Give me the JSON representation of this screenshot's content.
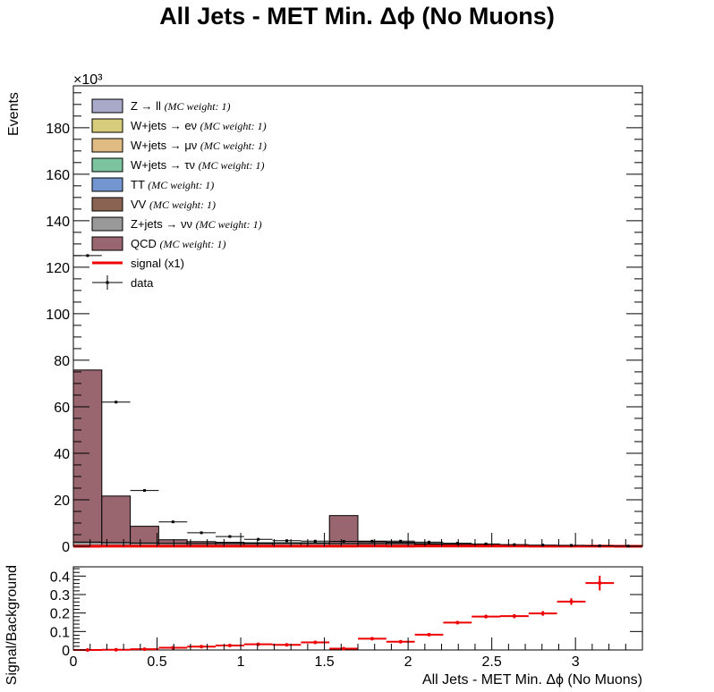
{
  "title": "All Jets - MET Min. Δϕ (No Muons)",
  "chart_data": [
    {
      "type": "bar",
      "stacked": true,
      "title": "All Jets - MET Min. Δϕ (No Muons)",
      "ylabel": "Events",
      "y_multiplier": "×10³",
      "xlim": [
        0,
        3.4
      ],
      "ylim": [
        0,
        198
      ],
      "y_ticks": [
        0,
        20,
        40,
        60,
        80,
        100,
        120,
        140,
        160,
        180
      ],
      "y_tick_labels": [
        "0",
        "20",
        "40",
        "60",
        "80",
        "100",
        "120",
        "140",
        "160",
        "180"
      ],
      "bin_edges": [
        0,
        0.17,
        0.34,
        0.51,
        0.68,
        0.85,
        1.02,
        1.19,
        1.36,
        1.53,
        1.7,
        1.87,
        2.04,
        2.21,
        2.38,
        2.55,
        2.72,
        2.89,
        3.06,
        3.23,
        3.4
      ],
      "legend_position": "top-left",
      "series": [
        {
          "name": "Z+jets → νν",
          "note": "(MC weight: 1)",
          "color": "#999999",
          "values": [
            1.8,
            1.6,
            1.4,
            1.3,
            1.2,
            1.2,
            1.2,
            1.3,
            1.3,
            1.2,
            1.2,
            1.2,
            0.9,
            0.7,
            0.5,
            0.4,
            0.3,
            0.2,
            0.1,
            0
          ]
        },
        {
          "name": "QCD",
          "note": "(MC weight: 1)",
          "color": "#996670",
          "values": [
            74,
            20,
            7.2,
            1.5,
            0.8,
            0.5,
            0.3,
            0.2,
            0.2,
            12,
            0.8,
            0.5,
            0.3,
            0.2,
            0.1,
            0.05,
            0.05,
            0,
            0,
            0
          ]
        }
      ],
      "legend": [
        {
          "label": "Z → ll",
          "note": "(MC weight: 1)",
          "color": "#a9a9c9",
          "kind": "box"
        },
        {
          "label": "W+jets → eν",
          "note": "(MC weight: 1)",
          "color": "#d6cc7c",
          "kind": "box"
        },
        {
          "label": "W+jets → μν",
          "note": "(MC weight: 1)",
          "color": "#e0bc84",
          "kind": "box"
        },
        {
          "label": "W+jets → τν",
          "note": "(MC weight: 1)",
          "color": "#7cc3a0",
          "kind": "box"
        },
        {
          "label": "TT",
          "note": "(MC weight: 1)",
          "color": "#7396d1",
          "kind": "box"
        },
        {
          "label": "VV",
          "note": "(MC weight: 1)",
          "color": "#8a6352",
          "kind": "box"
        },
        {
          "label": "Z+jets → νν",
          "note": "(MC weight: 1)",
          "color": "#999999",
          "kind": "box"
        },
        {
          "label": "QCD",
          "note": "(MC weight: 1)",
          "color": "#996670",
          "kind": "box"
        },
        {
          "label": "signal (x1)",
          "note": "",
          "color": "#ee0000",
          "kind": "line"
        },
        {
          "label": "data",
          "note": "",
          "color": "#000000",
          "kind": "marker"
        }
      ],
      "signal": {
        "name": "signal (x1)",
        "color": "#ee0000",
        "values": [
          0.02,
          0.04,
          0.05,
          0.05,
          0.04,
          0.05,
          0.05,
          0.05,
          0.06,
          0.06,
          0.08,
          0.06,
          0.08,
          0.12,
          0.1,
          0.08,
          0.06,
          0.05,
          0.03,
          0.02
        ]
      },
      "data": {
        "name": "data",
        "values": [
          125,
          62,
          24,
          10.5,
          5.8,
          4.2,
          3.0,
          2.4,
          2.2,
          2.1,
          2.2,
          2.2,
          1.8,
          1.3,
          1.0,
          0.7,
          0.5,
          0.4,
          0.2,
          0.1
        ]
      }
    },
    {
      "type": "scatter",
      "ylabel": "Signal/Background",
      "xlabel": "All Jets - MET Min. Δϕ (No Muons)",
      "xlim": [
        0,
        3.4
      ],
      "ylim": [
        0,
        0.45
      ],
      "x_ticks": [
        0,
        0.5,
        1,
        1.5,
        2,
        2.5,
        3
      ],
      "x_tick_labels": [
        "0",
        "0.5",
        "1",
        "1.5",
        "2",
        "2.5",
        "3"
      ],
      "y_ticks": [
        0,
        0.1,
        0.2,
        0.3,
        0.4
      ],
      "y_tick_labels": [
        "0",
        "0.1",
        "0.2",
        "0.3",
        "0.4"
      ],
      "color": "#ee0000",
      "points": [
        {
          "x": 0.085,
          "y": 0.0,
          "yerr": 0.002
        },
        {
          "x": 0.255,
          "y": 0.001,
          "yerr": 0.002
        },
        {
          "x": 0.425,
          "y": 0.004,
          "yerr": 0.002
        },
        {
          "x": 0.595,
          "y": 0.012,
          "yerr": 0.003
        },
        {
          "x": 0.765,
          "y": 0.018,
          "yerr": 0.003
        },
        {
          "x": 0.935,
          "y": 0.024,
          "yerr": 0.004
        },
        {
          "x": 1.105,
          "y": 0.031,
          "yerr": 0.004
        },
        {
          "x": 1.275,
          "y": 0.028,
          "yerr": 0.004
        },
        {
          "x": 1.445,
          "y": 0.041,
          "yerr": 0.005
        },
        {
          "x": 1.615,
          "y": 0.007,
          "yerr": 0.002
        },
        {
          "x": 1.785,
          "y": 0.061,
          "yerr": 0.006
        },
        {
          "x": 1.955,
          "y": 0.045,
          "yerr": 0.006
        },
        {
          "x": 2.125,
          "y": 0.083,
          "yerr": 0.007
        },
        {
          "x": 2.295,
          "y": 0.148,
          "yerr": 0.009
        },
        {
          "x": 2.465,
          "y": 0.181,
          "yerr": 0.01
        },
        {
          "x": 2.635,
          "y": 0.183,
          "yerr": 0.011
        },
        {
          "x": 2.805,
          "y": 0.198,
          "yerr": 0.013
        },
        {
          "x": 2.975,
          "y": 0.262,
          "yerr": 0.018
        },
        {
          "x": 3.145,
          "y": 0.362,
          "yerr": 0.04
        }
      ]
    }
  ]
}
